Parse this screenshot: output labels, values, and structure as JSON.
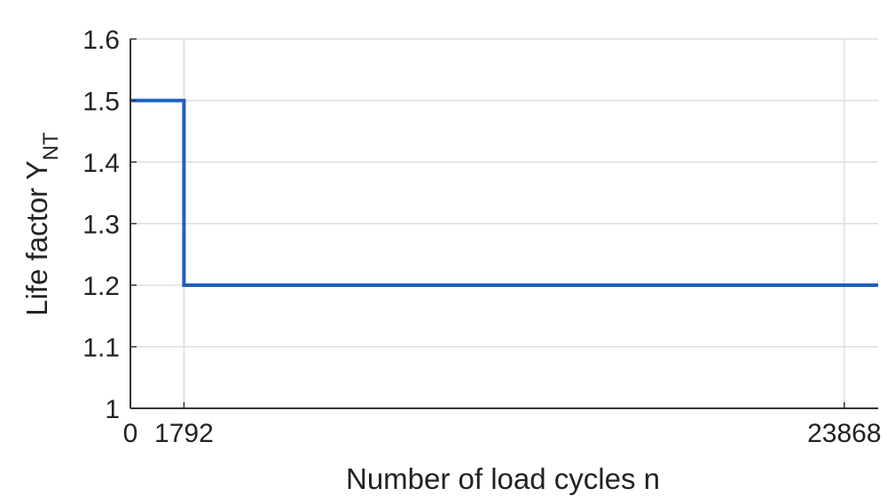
{
  "chart_data": {
    "type": "line",
    "xlabel": "Number of load cycles n",
    "ylabel": "Life factor Y",
    "ylabel_subscript": "NT",
    "xlim": [
      0,
      25000
    ],
    "ylim": [
      1,
      1.6
    ],
    "x_ticks": [
      0,
      1792,
      23868
    ],
    "x_tick_labels": [
      "0",
      "1792",
      "23868"
    ],
    "y_ticks": [
      1,
      1.1,
      1.2,
      1.3,
      1.4,
      1.5,
      1.6
    ],
    "y_tick_labels": [
      "1",
      "1.1",
      "1.2",
      "1.3",
      "1.4",
      "1.5",
      "1.6"
    ],
    "grid": true,
    "series": [
      {
        "color": "#1f5fbf",
        "x": [
          0,
          1792,
          1792,
          25000
        ],
        "y": [
          1.5,
          1.5,
          1.2,
          1.2
        ]
      }
    ]
  }
}
